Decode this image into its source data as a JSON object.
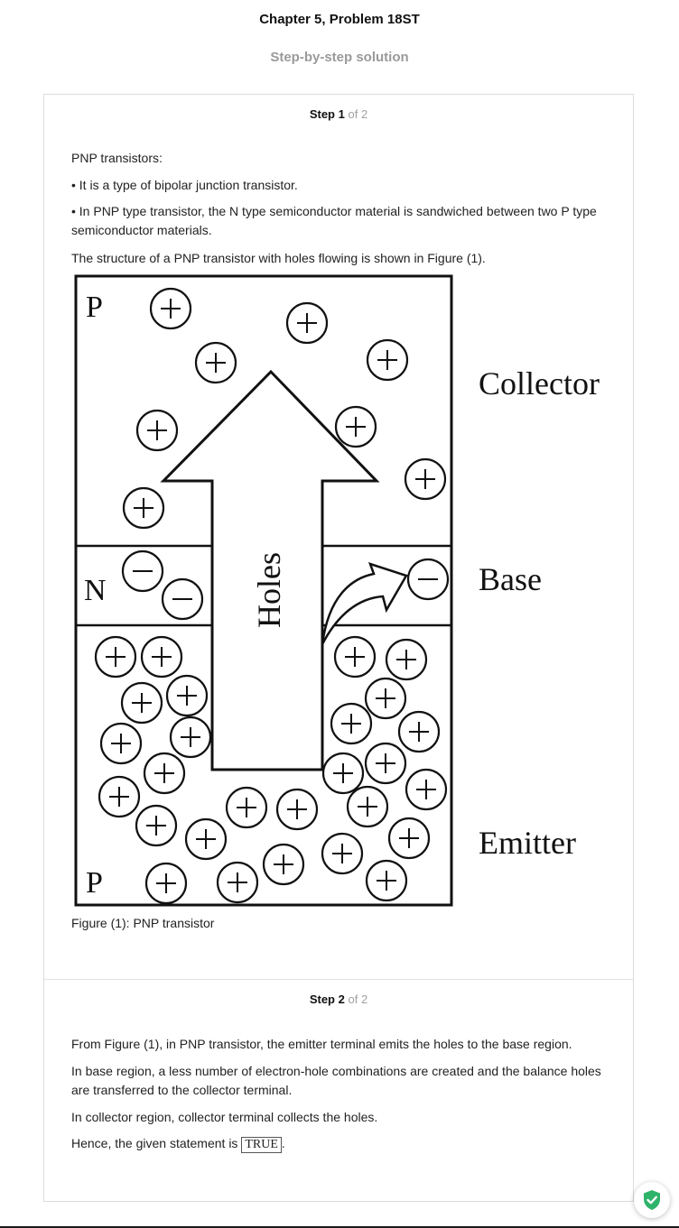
{
  "header": {
    "title": "Chapter 5, Problem 18ST",
    "subtitle": "Step-by-step solution"
  },
  "steps": [
    {
      "step_word": "Step",
      "number": "1",
      "of_text": "of 2",
      "paragraphs": [
        "PNP transistors:",
        "• It is a type of bipolar junction transistor.",
        "• In PNP type transistor, the N type semiconductor material is sandwiched between two P type semiconductor materials.",
        "The structure of a PNP transistor with holes flowing is shown in Figure (1)."
      ],
      "figure": {
        "labels": {
          "p_top": "P",
          "n": "N",
          "p_bottom": "P",
          "collector": "Collector",
          "base": "Base",
          "emitter": "Emitter",
          "holes": "Holes"
        },
        "caption": "Figure (1): PNP transistor"
      }
    },
    {
      "step_word": "Step",
      "number": "2",
      "of_text": "of 2",
      "paragraphs": [
        "From Figure (1), in PNP transistor, the emitter terminal emits the holes to the base region.",
        "In base region, a less number of electron-hole combinations are created and the balance holes are transferred to the collector terminal.",
        "In collector region, collector terminal collects the holes."
      ],
      "conclusion_prefix": "Hence, the given statement is",
      "answer": "TRUE",
      "conclusion_suffix": "."
    }
  ],
  "colors": {
    "title": "#111111",
    "subtitle": "#9a9a9a",
    "card_border": "#dcdcdc",
    "shield_green": "#2fb36b"
  },
  "icons": {
    "verified_badge": "shield-check-icon"
  }
}
